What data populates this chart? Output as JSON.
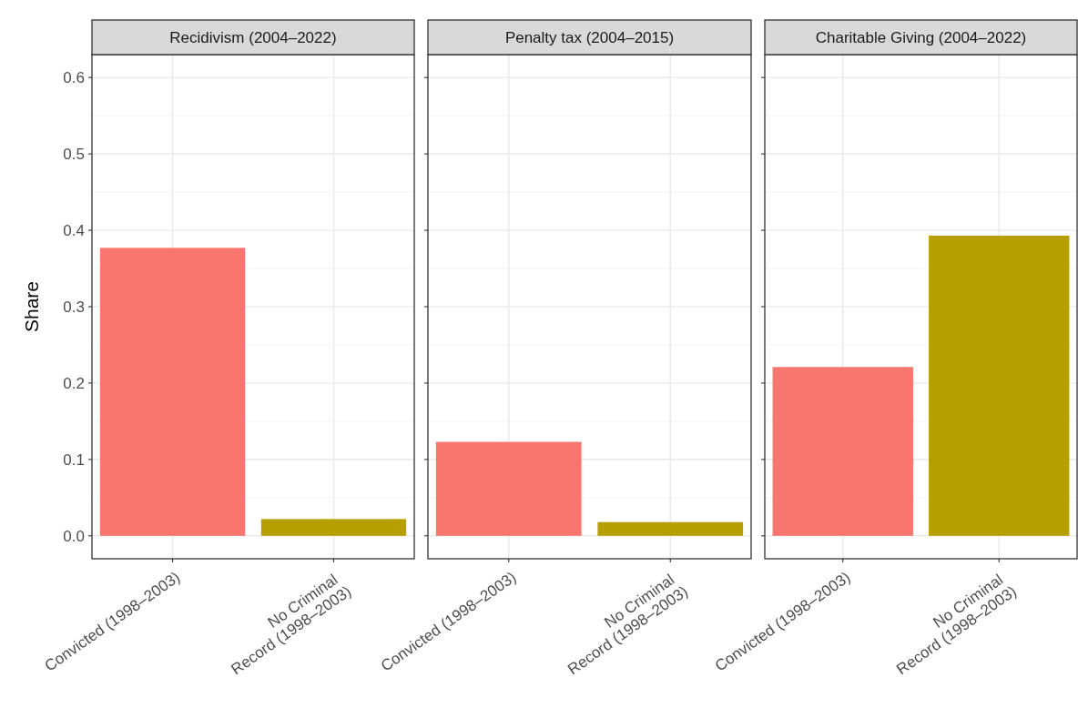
{
  "chart_data": [
    {
      "type": "bar",
      "title": "Recidivism (2004–2022)",
      "ylabel": "Share",
      "categories": [
        "Convicted (1998–2003)",
        "No Criminal\nRecord (1998–2003)"
      ],
      "values": [
        0.377,
        0.022
      ],
      "colors": [
        "#f8766d",
        "#b79f00"
      ],
      "ylim": [
        -0.03,
        0.63
      ],
      "yticks": [
        {
          "value": 0,
          "label": "0.0"
        },
        0.1,
        0.2,
        0.3,
        0.4,
        0.5,
        0.6
      ],
      "grid": true
    },
    {
      "type": "bar",
      "title": "Penalty tax (2004–2015)",
      "categories": [
        "Convicted (1998–2003)",
        "No Criminal\nRecord (1998–2003)"
      ],
      "values": [
        0.123,
        0.018
      ],
      "colors": [
        "#f8766d",
        "#b79f00"
      ],
      "ylim": [
        -0.03,
        0.63
      ],
      "yticks": [
        0,
        0.1,
        0.2,
        0.3,
        0.4,
        0.5,
        0.6
      ],
      "grid": true,
      "tick_labels": "x"
    },
    {
      "type": "bar",
      "title": "Charitable Giving (2004–2022)",
      "categories": [
        "Convicted (1998–2003)",
        "No Criminal\nRecord (1998–2003)"
      ],
      "values": [
        0.221,
        0.393
      ],
      "colors": [
        "#f8766d",
        "#b79f00"
      ],
      "ylim": [
        -0.03,
        0.63
      ],
      "yticks": [
        0,
        0.1,
        0.2,
        0.3,
        0.4,
        0.5,
        0.6
      ],
      "grid": true,
      "tick_labels": "x"
    }
  ]
}
